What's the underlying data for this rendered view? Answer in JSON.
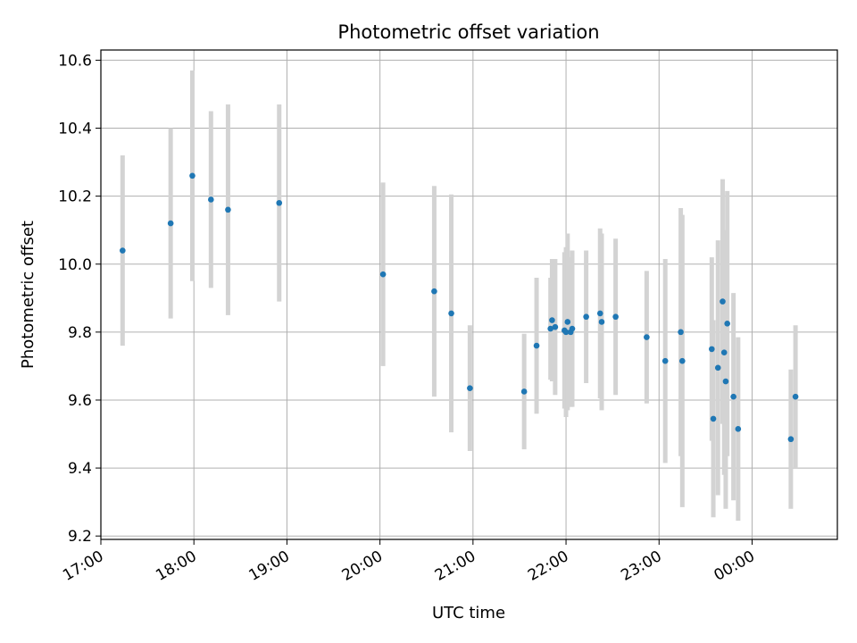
{
  "chart_data": {
    "type": "scatter",
    "title": "Photometric offset variation",
    "xlabel": "UTC time",
    "ylabel": "Photometric offset",
    "grid": true,
    "x_unit": "UTC (hours from 17:00 on first day; values above 24 are past midnight)",
    "xlim": [
      "17:00",
      "00:55"
    ],
    "ylim": [
      9.19,
      10.63
    ],
    "x_ticks": [
      "17:00",
      "18:00",
      "19:00",
      "20:00",
      "21:00",
      "22:00",
      "23:00",
      "00:00"
    ],
    "y_ticks": [
      "9.2",
      "9.4",
      "9.6",
      "9.8",
      "10.0",
      "10.2",
      "10.4",
      "10.6"
    ],
    "point_color": "#1f77b4",
    "errorbar_color": "#d3d3d3",
    "points": [
      {
        "time": "17:14",
        "y": 10.04,
        "err": 0.28
      },
      {
        "time": "17:45",
        "y": 10.12,
        "err": 0.28
      },
      {
        "time": "17:59",
        "y": 10.26,
        "err": 0.31
      },
      {
        "time": "18:11",
        "y": 10.19,
        "err": 0.26
      },
      {
        "time": "18:22",
        "y": 10.16,
        "err": 0.31
      },
      {
        "time": "18:55",
        "y": 10.18,
        "err": 0.29
      },
      {
        "time": "20:02",
        "y": 9.97,
        "err": 0.27
      },
      {
        "time": "20:35",
        "y": 9.92,
        "err": 0.31
      },
      {
        "time": "20:46",
        "y": 9.855,
        "err": 0.35
      },
      {
        "time": "20:58",
        "y": 9.635,
        "err": 0.185
      },
      {
        "time": "21:33",
        "y": 9.625,
        "err": 0.17
      },
      {
        "time": "21:41",
        "y": 9.76,
        "err": 0.2
      },
      {
        "time": "21:50",
        "y": 9.81,
        "err": 0.15
      },
      {
        "time": "21:51",
        "y": 9.835,
        "err": 0.18
      },
      {
        "time": "21:53",
        "y": 9.815,
        "err": 0.2
      },
      {
        "time": "21:59",
        "y": 9.805,
        "err": 0.23
      },
      {
        "time": "22:00",
        "y": 9.8,
        "err": 0.25
      },
      {
        "time": "22:01",
        "y": 9.83,
        "err": 0.26
      },
      {
        "time": "22:03",
        "y": 9.8,
        "err": 0.22
      },
      {
        "time": "22:04",
        "y": 9.81,
        "err": 0.23
      },
      {
        "time": "22:13",
        "y": 9.845,
        "err": 0.195
      },
      {
        "time": "22:22",
        "y": 9.855,
        "err": 0.25
      },
      {
        "time": "22:23",
        "y": 9.83,
        "err": 0.26
      },
      {
        "time": "22:32",
        "y": 9.845,
        "err": 0.23
      },
      {
        "time": "22:52",
        "y": 9.785,
        "err": 0.195
      },
      {
        "time": "23:04",
        "y": 9.715,
        "err": 0.3
      },
      {
        "time": "23:14",
        "y": 9.8,
        "err": 0.365
      },
      {
        "time": "23:15",
        "y": 9.715,
        "err": 0.43
      },
      {
        "time": "23:34",
        "y": 9.75,
        "err": 0.27
      },
      {
        "time": "23:35",
        "y": 9.545,
        "err": 0.29
      },
      {
        "time": "23:38",
        "y": 9.695,
        "err": 0.375
      },
      {
        "time": "23:41",
        "y": 9.89,
        "err": 0.36
      },
      {
        "time": "23:42",
        "y": 9.74,
        "err": 0.36
      },
      {
        "time": "23:43",
        "y": 9.655,
        "err": 0.375
      },
      {
        "time": "23:44",
        "y": 9.825,
        "err": 0.39
      },
      {
        "time": "23:48",
        "y": 9.61,
        "err": 0.305
      },
      {
        "time": "23:51",
        "y": 9.515,
        "err": 0.27
      },
      {
        "time": "00:25",
        "y": 9.485,
        "err": 0.205
      },
      {
        "time": "00:28",
        "y": 9.61,
        "err": 0.21
      }
    ]
  }
}
